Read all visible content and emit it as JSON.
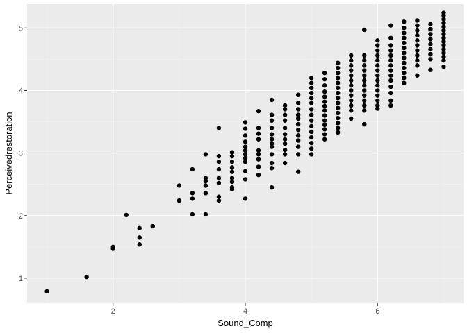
{
  "chart_data": {
    "type": "scatter",
    "title": "",
    "xlabel": "Sound_Comp",
    "ylabel": "Perceivedrestoration",
    "xlim": [
      0.7,
      7.3
    ],
    "ylim": [
      0.6,
      5.38
    ],
    "x_ticks": [
      2,
      4,
      6
    ],
    "y_ticks": [
      1,
      2,
      3,
      4,
      5
    ],
    "x_tick_labels": [
      "2",
      "4",
      "6"
    ],
    "y_tick_labels": [
      "1",
      "2",
      "3",
      "4",
      "5"
    ],
    "grid": true,
    "legend": "none",
    "colors": {
      "panel_background": "#ebebeb",
      "grid_major": "#ffffff",
      "grid_minor": "#f2f2f2",
      "point": "#000000",
      "tick": "#333333"
    },
    "points": [
      [
        1.0,
        0.79
      ],
      [
        1.6,
        1.02
      ],
      [
        2.0,
        1.47
      ],
      [
        2.0,
        1.5
      ],
      [
        2.2,
        2.01
      ],
      [
        2.4,
        1.8
      ],
      [
        2.4,
        1.65
      ],
      [
        2.4,
        1.54
      ],
      [
        2.6,
        1.83
      ],
      [
        3.0,
        2.48
      ],
      [
        3.0,
        2.24
      ],
      [
        3.2,
        2.74
      ],
      [
        3.2,
        2.36
      ],
      [
        3.2,
        2.27
      ],
      [
        3.2,
        2.02
      ],
      [
        3.4,
        2.98
      ],
      [
        3.4,
        2.6
      ],
      [
        3.4,
        2.55
      ],
      [
        3.4,
        2.48
      ],
      [
        3.4,
        2.36
      ],
      [
        3.4,
        2.02
      ],
      [
        3.6,
        3.4
      ],
      [
        3.6,
        2.95
      ],
      [
        3.6,
        2.86
      ],
      [
        3.6,
        2.74
      ],
      [
        3.6,
        2.6
      ],
      [
        3.6,
        2.52
      ],
      [
        3.6,
        2.3
      ],
      [
        3.6,
        2.24
      ],
      [
        3.8,
        3.01
      ],
      [
        3.8,
        2.95
      ],
      [
        3.8,
        2.86
      ],
      [
        3.8,
        2.77
      ],
      [
        3.8,
        2.7
      ],
      [
        3.8,
        2.6
      ],
      [
        3.8,
        2.54
      ],
      [
        3.8,
        2.45
      ],
      [
        3.8,
        2.42
      ],
      [
        4.0,
        3.49
      ],
      [
        4.0,
        3.39
      ],
      [
        4.0,
        3.28
      ],
      [
        4.0,
        3.18
      ],
      [
        4.0,
        3.1
      ],
      [
        4.0,
        3.04
      ],
      [
        4.0,
        2.98
      ],
      [
        4.0,
        2.92
      ],
      [
        4.0,
        2.86
      ],
      [
        4.0,
        2.71
      ],
      [
        4.0,
        2.58
      ],
      [
        4.0,
        2.27
      ],
      [
        4.2,
        3.67
      ],
      [
        4.2,
        3.4
      ],
      [
        4.2,
        3.31
      ],
      [
        4.2,
        3.22
      ],
      [
        4.2,
        3.04
      ],
      [
        4.2,
        2.98
      ],
      [
        4.2,
        2.9
      ],
      [
        4.2,
        2.78
      ],
      [
        4.2,
        2.65
      ],
      [
        4.4,
        3.85
      ],
      [
        4.4,
        3.61
      ],
      [
        4.4,
        3.52
      ],
      [
        4.4,
        3.4
      ],
      [
        4.4,
        3.3
      ],
      [
        4.4,
        3.22
      ],
      [
        4.4,
        3.15
      ],
      [
        4.4,
        3.1
      ],
      [
        4.4,
        2.98
      ],
      [
        4.4,
        2.84
      ],
      [
        4.4,
        2.76
      ],
      [
        4.4,
        2.45
      ],
      [
        4.6,
        3.76
      ],
      [
        4.6,
        3.7
      ],
      [
        4.6,
        3.61
      ],
      [
        4.6,
        3.52
      ],
      [
        4.6,
        3.4
      ],
      [
        4.6,
        3.3
      ],
      [
        4.6,
        3.22
      ],
      [
        4.6,
        3.15
      ],
      [
        4.6,
        3.05
      ],
      [
        4.6,
        2.98
      ],
      [
        4.6,
        2.84
      ],
      [
        4.8,
        3.93
      ],
      [
        4.8,
        3.8
      ],
      [
        4.8,
        3.7
      ],
      [
        4.8,
        3.61
      ],
      [
        4.8,
        3.55
      ],
      [
        4.8,
        3.46
      ],
      [
        4.8,
        3.37
      ],
      [
        4.8,
        3.28
      ],
      [
        4.8,
        3.2
      ],
      [
        4.8,
        3.1
      ],
      [
        4.8,
        2.98
      ],
      [
        4.8,
        2.7
      ],
      [
        5.0,
        4.2
      ],
      [
        5.0,
        4.12
      ],
      [
        5.0,
        4.04
      ],
      [
        5.0,
        3.96
      ],
      [
        5.0,
        3.88
      ],
      [
        5.0,
        3.8
      ],
      [
        5.0,
        3.7
      ],
      [
        5.0,
        3.61
      ],
      [
        5.0,
        3.52
      ],
      [
        5.0,
        3.43
      ],
      [
        5.0,
        3.34
      ],
      [
        5.0,
        3.25
      ],
      [
        5.0,
        3.16
      ],
      [
        5.0,
        3.07
      ],
      [
        5.0,
        2.98
      ],
      [
        5.2,
        4.28
      ],
      [
        5.2,
        4.18
      ],
      [
        5.2,
        4.08
      ],
      [
        5.2,
        3.98
      ],
      [
        5.2,
        3.9
      ],
      [
        5.2,
        3.82
      ],
      [
        5.2,
        3.75
      ],
      [
        5.2,
        3.68
      ],
      [
        5.2,
        3.6
      ],
      [
        5.2,
        3.52
      ],
      [
        5.2,
        3.45
      ],
      [
        5.2,
        3.38
      ],
      [
        5.2,
        3.3
      ],
      [
        5.2,
        3.22
      ],
      [
        5.4,
        4.44
      ],
      [
        5.4,
        4.36
      ],
      [
        5.4,
        4.28
      ],
      [
        5.4,
        4.2
      ],
      [
        5.4,
        4.12
      ],
      [
        5.4,
        4.04
      ],
      [
        5.4,
        3.96
      ],
      [
        5.4,
        3.88
      ],
      [
        5.4,
        3.8
      ],
      [
        5.4,
        3.72
      ],
      [
        5.4,
        3.64
      ],
      [
        5.4,
        3.56
      ],
      [
        5.4,
        3.48
      ],
      [
        5.4,
        3.4
      ],
      [
        5.4,
        3.33
      ],
      [
        5.6,
        4.56
      ],
      [
        5.6,
        4.48
      ],
      [
        5.6,
        4.4
      ],
      [
        5.6,
        4.32
      ],
      [
        5.6,
        4.24
      ],
      [
        5.6,
        4.16
      ],
      [
        5.6,
        4.08
      ],
      [
        5.6,
        4.0
      ],
      [
        5.6,
        3.92
      ],
      [
        5.6,
        3.84
      ],
      [
        5.6,
        3.76
      ],
      [
        5.6,
        3.68
      ],
      [
        5.6,
        3.55
      ],
      [
        5.8,
        4.97
      ],
      [
        5.8,
        4.56
      ],
      [
        5.8,
        4.48
      ],
      [
        5.8,
        4.4
      ],
      [
        5.8,
        4.32
      ],
      [
        5.8,
        4.24
      ],
      [
        5.8,
        4.16
      ],
      [
        5.8,
        4.08
      ],
      [
        5.8,
        4.0
      ],
      [
        5.8,
        3.92
      ],
      [
        5.8,
        3.84
      ],
      [
        5.8,
        3.76
      ],
      [
        5.8,
        3.68
      ],
      [
        5.8,
        3.46
      ],
      [
        6.0,
        4.8
      ],
      [
        6.0,
        4.72
      ],
      [
        6.0,
        4.64
      ],
      [
        6.0,
        4.56
      ],
      [
        6.0,
        4.48
      ],
      [
        6.0,
        4.4
      ],
      [
        6.0,
        4.32
      ],
      [
        6.0,
        4.24
      ],
      [
        6.0,
        4.16
      ],
      [
        6.0,
        4.08
      ],
      [
        6.0,
        4.0
      ],
      [
        6.0,
        3.92
      ],
      [
        6.0,
        3.84
      ],
      [
        6.0,
        3.76
      ],
      [
        6.0,
        3.71
      ],
      [
        6.2,
        5.04
      ],
      [
        6.2,
        4.84
      ],
      [
        6.2,
        4.72
      ],
      [
        6.2,
        4.64
      ],
      [
        6.2,
        4.56
      ],
      [
        6.2,
        4.48
      ],
      [
        6.2,
        4.4
      ],
      [
        6.2,
        4.32
      ],
      [
        6.2,
        4.24
      ],
      [
        6.2,
        4.16
      ],
      [
        6.2,
        4.06
      ],
      [
        6.2,
        3.96
      ],
      [
        6.2,
        3.84
      ],
      [
        6.2,
        3.76
      ],
      [
        6.4,
        5.1
      ],
      [
        6.4,
        5.0
      ],
      [
        6.4,
        4.92
      ],
      [
        6.4,
        4.84
      ],
      [
        6.4,
        4.76
      ],
      [
        6.4,
        4.68
      ],
      [
        6.4,
        4.6
      ],
      [
        6.4,
        4.52
      ],
      [
        6.4,
        4.44
      ],
      [
        6.4,
        4.36
      ],
      [
        6.4,
        4.28
      ],
      [
        6.4,
        4.2
      ],
      [
        6.4,
        4.12
      ],
      [
        6.6,
        5.12
      ],
      [
        6.6,
        5.04
      ],
      [
        6.6,
        4.96
      ],
      [
        6.6,
        4.88
      ],
      [
        6.6,
        4.8
      ],
      [
        6.6,
        4.72
      ],
      [
        6.6,
        4.64
      ],
      [
        6.6,
        4.56
      ],
      [
        6.6,
        4.48
      ],
      [
        6.6,
        4.4
      ],
      [
        6.6,
        4.24
      ],
      [
        6.8,
        5.06
      ],
      [
        6.8,
        4.98
      ],
      [
        6.8,
        4.9
      ],
      [
        6.8,
        4.82
      ],
      [
        6.8,
        4.74
      ],
      [
        6.8,
        4.66
      ],
      [
        6.8,
        4.58
      ],
      [
        6.8,
        4.5
      ],
      [
        6.8,
        4.33
      ],
      [
        7.0,
        5.24
      ],
      [
        7.0,
        5.2
      ],
      [
        7.0,
        5.14
      ],
      [
        7.0,
        5.08
      ],
      [
        7.0,
        5.02
      ],
      [
        7.0,
        4.96
      ],
      [
        7.0,
        4.9
      ],
      [
        7.0,
        4.84
      ],
      [
        7.0,
        4.78
      ],
      [
        7.0,
        4.72
      ],
      [
        7.0,
        4.66
      ],
      [
        7.0,
        4.6
      ],
      [
        7.0,
        4.54
      ],
      [
        7.0,
        4.48
      ],
      [
        7.0,
        4.38
      ]
    ]
  }
}
